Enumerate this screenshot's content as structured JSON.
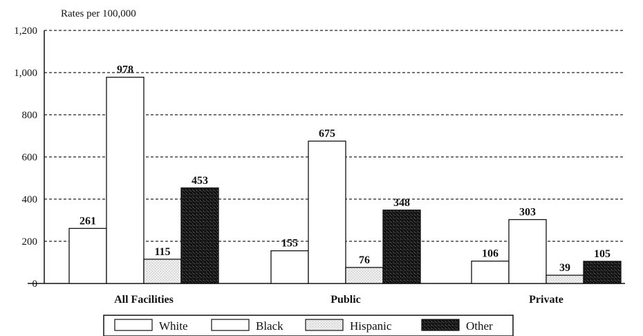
{
  "chart_data": {
    "type": "bar",
    "ylabel": "Rates per 100,000",
    "xlabel": "",
    "ylim": [
      0,
      1200
    ],
    "yticks": [
      "0",
      "200",
      "400",
      "600",
      "800",
      "1,000",
      "1,200"
    ],
    "categories": [
      "All Facilities",
      "Public",
      "Private"
    ],
    "series": [
      {
        "name": "White",
        "values": [
          261,
          155,
          106
        ],
        "color": "#ffffff"
      },
      {
        "name": "Black",
        "values": [
          978,
          675,
          303
        ],
        "color": "#ffffff"
      },
      {
        "name": "Hispanic",
        "values": [
          115,
          76,
          39
        ],
        "color": "#e6e6e6"
      },
      {
        "name": "Other",
        "values": [
          453,
          348,
          105
        ],
        "color": "#1a1a1a"
      }
    ],
    "grid": true,
    "legend_position": "bottom"
  }
}
